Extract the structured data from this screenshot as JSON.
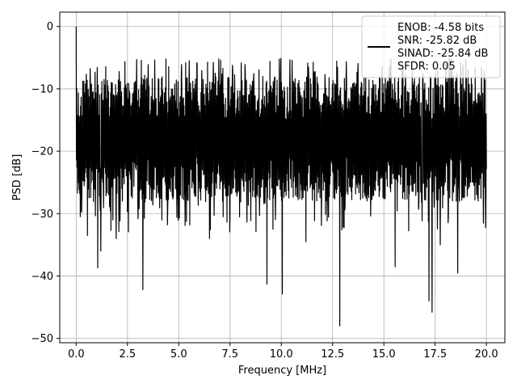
{
  "chart_data": {
    "type": "line",
    "title": "",
    "xlabel": "Frequency [MHz]",
    "ylabel": "PSD [dB]",
    "xlim": [
      -0.8,
      20.9
    ],
    "ylim": [
      -50.7,
      2.3
    ],
    "grid": true,
    "legend_placement": "upper-right",
    "x_ticks": [
      0.0,
      2.5,
      5.0,
      7.5,
      10.0,
      12.5,
      15.0,
      17.5,
      20.0
    ],
    "x_tick_labels": [
      "0.0",
      "2.5",
      "5.0",
      "7.5",
      "10.0",
      "12.5",
      "15.0",
      "17.5",
      "20.0"
    ],
    "y_ticks": [
      0,
      -10,
      -20,
      -30,
      -40,
      -50
    ],
    "y_tick_labels": [
      "0",
      "−10",
      "−20",
      "−30",
      "−40",
      "−50"
    ],
    "series": [
      {
        "name": "ENOB: -4.58 bits\nSNR: -25.82 dB\nSINAD: -25.84 dB\nSFDR: 0.05",
        "color": "#000000",
        "x_range": [
          0.0,
          20.0
        ],
        "peak": {
          "x": 0.0,
          "y": 0.0
        },
        "band_center_db": -17.5,
        "band_low_db": -28.0,
        "band_high_db": -8.0,
        "deep_nulls": [
          {
            "x": 0.2,
            "y": -30.5
          },
          {
            "x": 0.55,
            "y": -33.5
          },
          {
            "x": 1.05,
            "y": -38.7
          },
          {
            "x": 1.2,
            "y": -36.0
          },
          {
            "x": 1.95,
            "y": -34.0
          },
          {
            "x": 3.25,
            "y": -42.2
          },
          {
            "x": 4.45,
            "y": -31.8
          },
          {
            "x": 6.5,
            "y": -34.0
          },
          {
            "x": 9.3,
            "y": -41.3
          },
          {
            "x": 10.05,
            "y": -42.9
          },
          {
            "x": 11.2,
            "y": -34.5
          },
          {
            "x": 12.85,
            "y": -48.0
          },
          {
            "x": 15.55,
            "y": -38.5
          },
          {
            "x": 17.2,
            "y": -44.0
          },
          {
            "x": 17.35,
            "y": -45.8
          },
          {
            "x": 17.75,
            "y": -35.0
          },
          {
            "x": 18.6,
            "y": -39.5
          }
        ]
      }
    ]
  }
}
